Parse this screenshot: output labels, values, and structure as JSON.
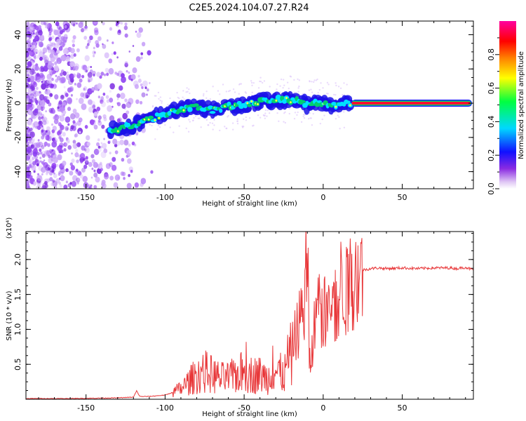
{
  "title": "C2E5.2024.104.07.27.R24",
  "chart_data": [
    {
      "type": "heatmap",
      "name": "spectrogram",
      "xlabel": "Height of straight line (km)",
      "ylabel": "Frequency (Hz)",
      "xlim": [
        -188,
        95
      ],
      "ylim": [
        -50,
        48
      ],
      "xticks": [
        -150,
        -100,
        -50,
        0,
        50
      ],
      "xtick_labels": [
        "-150",
        "-100",
        "-50",
        "0",
        "50"
      ],
      "yticks": [
        -40,
        -20,
        0,
        20,
        40
      ],
      "ytick_labels": [
        "-40",
        "-20",
        "0",
        "20",
        "40"
      ],
      "ridge": {
        "x": [
          -135,
          -120,
          -105,
          -95,
          -80,
          -70,
          -60,
          -50,
          -40,
          -30,
          -20,
          -15,
          -10,
          -5,
          0,
          5,
          10,
          15,
          20,
          95
        ],
        "y": [
          -16,
          -13,
          -8,
          -5,
          -2,
          -4,
          -2,
          -1,
          1,
          2,
          2,
          1,
          -1,
          0,
          0,
          -1,
          -1,
          0,
          0,
          0
        ]
      },
      "colorbar": {
        "label": "Normalized spectral amplitude",
        "ticks": [
          0.0,
          0.2,
          0.4,
          0.6,
          0.8
        ],
        "tick_labels": [
          "0.0",
          "0.2",
          "0.4",
          "0.6",
          "0.8"
        ],
        "range": [
          0,
          1
        ],
        "colors": [
          "#ffffff",
          "#e0c8f5",
          "#8a2be2",
          "#1010ff",
          "#00d8ff",
          "#00ff40",
          "#ffff00",
          "#ff8000",
          "#ff0000",
          "#ff00a0"
        ]
      }
    },
    {
      "type": "line",
      "name": "snr",
      "xlabel": "Height of straight line (km)",
      "ylabel": "SNR (10 * v/v)",
      "scale_label": "(x10⁴)",
      "xlim": [
        -188,
        95
      ],
      "ylim": [
        0,
        2.4
      ],
      "xticks": [
        -150,
        -100,
        -50,
        0,
        50
      ],
      "xtick_labels": [
        "-150",
        "-100",
        "-50",
        "0",
        "50"
      ],
      "yticks": [
        0.5,
        1.0,
        1.5,
        2.0
      ],
      "ytick_labels": [
        "0.5",
        "1.0",
        "1.5",
        "2.0"
      ],
      "color": "#e8383a",
      "series": [
        {
          "name": "SNR",
          "x": [
            -188,
            -160,
            -130,
            -120,
            -118,
            -116,
            -110,
            -100,
            -95,
            -90,
            -85,
            -80,
            -75,
            -70,
            -65,
            -60,
            -55,
            -50,
            -45,
            -40,
            -35,
            -30,
            -25,
            -22,
            -20,
            -18,
            -15,
            -12,
            -10,
            -9,
            -8,
            -5,
            -2,
            0,
            3,
            5,
            8,
            10,
            12,
            15,
            18,
            20,
            25,
            30,
            35,
            40,
            50,
            60,
            70,
            80,
            85,
            90,
            95
          ],
          "y": [
            0.01,
            0.01,
            0.02,
            0.03,
            0.12,
            0.04,
            0.04,
            0.06,
            0.1,
            0.15,
            0.25,
            0.35,
            0.4,
            0.35,
            0.3,
            0.3,
            0.35,
            0.4,
            0.35,
            0.35,
            0.3,
            0.4,
            0.35,
            0.45,
            0.7,
            0.9,
            1.1,
            1.4,
            2.35,
            0.8,
            0.5,
            1.15,
            1.3,
            1.2,
            1.35,
            1.35,
            1.4,
            1.55,
            1.7,
            1.5,
            1.8,
            1.75,
            1.85,
            1.87,
            1.88,
            1.87,
            1.88,
            1.87,
            1.88,
            1.88,
            1.87,
            1.89,
            1.85
          ]
        }
      ]
    }
  ]
}
